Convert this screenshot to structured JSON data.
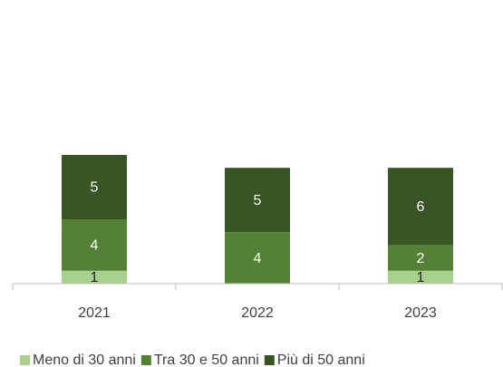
{
  "chart_data": {
    "type": "stacked_bar",
    "categories": [
      "2021",
      "2022",
      "2023"
    ],
    "series": [
      {
        "name": "Meno di 30 anni",
        "color": "#a9d18e",
        "values": [
          1,
          null,
          1
        ]
      },
      {
        "name": "Tra 30 e 50 anni",
        "color": "#548235",
        "values": [
          4,
          4,
          2
        ]
      },
      {
        "name": "Più di 50 anni",
        "color": "#375623",
        "values": [
          5,
          5,
          6
        ]
      }
    ],
    "ylim": [
      0,
      20
    ],
    "legend": "bottom"
  }
}
